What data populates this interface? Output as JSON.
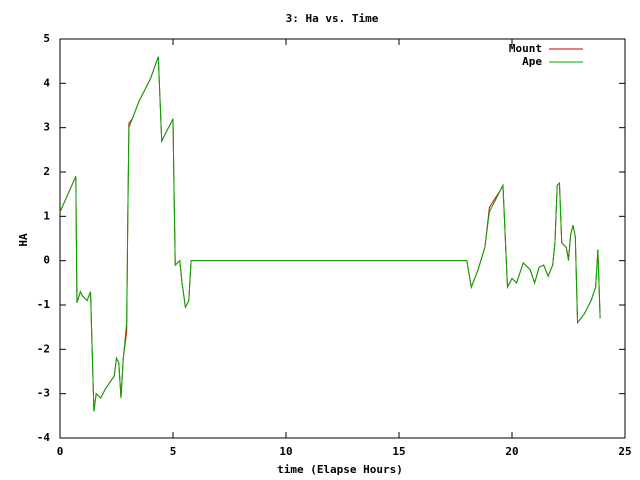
{
  "chart_data": {
    "type": "line",
    "title": "3: Ha vs. Time",
    "xlabel": "time (Elapse Hours)",
    "ylabel": "HA",
    "x": [
      0,
      0.7,
      0.75,
      0.9,
      1.0,
      1.2,
      1.35,
      1.5,
      1.6,
      1.8,
      2.0,
      2.4,
      2.5,
      2.6,
      2.7,
      2.8,
      2.95,
      3.0,
      3.05,
      3.2,
      3.5,
      4.0,
      4.35,
      4.5,
      5.0,
      5.05,
      5.1,
      5.3,
      5.4,
      5.55,
      5.7,
      5.8,
      18.0,
      18.2,
      18.5,
      18.8,
      19.0,
      19.5,
      19.6,
      19.8,
      20.0,
      20.2,
      20.5,
      20.8,
      21.0,
      21.2,
      21.4,
      21.6,
      21.8,
      21.9,
      22.0,
      22.1,
      22.2,
      22.4,
      22.5,
      22.6,
      22.7,
      22.8,
      22.9,
      23.2,
      23.5,
      23.7,
      23.8,
      23.9
    ],
    "series": [
      {
        "name": "Mount",
        "color": "#cc0000",
        "values": [
          1.1,
          1.9,
          -0.95,
          -0.7,
          -0.8,
          -0.9,
          -0.7,
          -3.4,
          -3.0,
          -3.1,
          -2.9,
          -2.6,
          -2.2,
          -2.3,
          -3.1,
          -2.2,
          -1.6,
          1.0,
          3.1,
          3.2,
          3.6,
          4.1,
          4.6,
          2.7,
          3.2,
          1.4,
          -0.1,
          0,
          -0.5,
          -1.05,
          -0.9,
          0,
          0,
          -0.6,
          -0.2,
          0.3,
          1.2,
          1.6,
          1.7,
          -0.6,
          -0.4,
          -0.5,
          -0.05,
          -0.2,
          -0.5,
          -0.15,
          -0.1,
          -0.35,
          -0.1,
          0.4,
          1.7,
          1.75,
          0.4,
          0.3,
          0.05,
          0.6,
          0.8,
          0.55,
          -1.4,
          -1.2,
          -0.9,
          -0.6,
          0.25,
          -1.3
        ]
      },
      {
        "name": "Ape",
        "color": "#00aa00",
        "values": [
          1.1,
          1.9,
          -0.95,
          -0.7,
          -0.8,
          -0.9,
          -0.7,
          -3.4,
          -3.0,
          -3.1,
          -2.9,
          -2.6,
          -2.2,
          -2.3,
          -3.1,
          -2.2,
          -1.4,
          1.0,
          3.0,
          3.2,
          3.6,
          4.1,
          4.6,
          2.7,
          3.2,
          1.5,
          -0.1,
          0,
          -0.5,
          -1.05,
          -0.9,
          0,
          0,
          -0.6,
          -0.2,
          0.3,
          1.1,
          1.6,
          1.7,
          -0.6,
          -0.4,
          -0.5,
          -0.05,
          -0.2,
          -0.5,
          -0.15,
          -0.1,
          -0.35,
          -0.1,
          0.4,
          1.7,
          1.75,
          0.4,
          0.3,
          0.0,
          0.6,
          0.8,
          0.55,
          -1.4,
          -1.2,
          -0.9,
          -0.6,
          0.25,
          -1.3
        ]
      }
    ],
    "xlim": [
      0,
      25
    ],
    "xticks": [
      0,
      5,
      10,
      15,
      20,
      25
    ],
    "ylim": [
      -4,
      5
    ],
    "yticks": [
      -4,
      -3,
      -2,
      -1,
      0,
      1,
      2,
      3,
      4,
      5
    ],
    "grid": false,
    "legend": "top-right"
  }
}
